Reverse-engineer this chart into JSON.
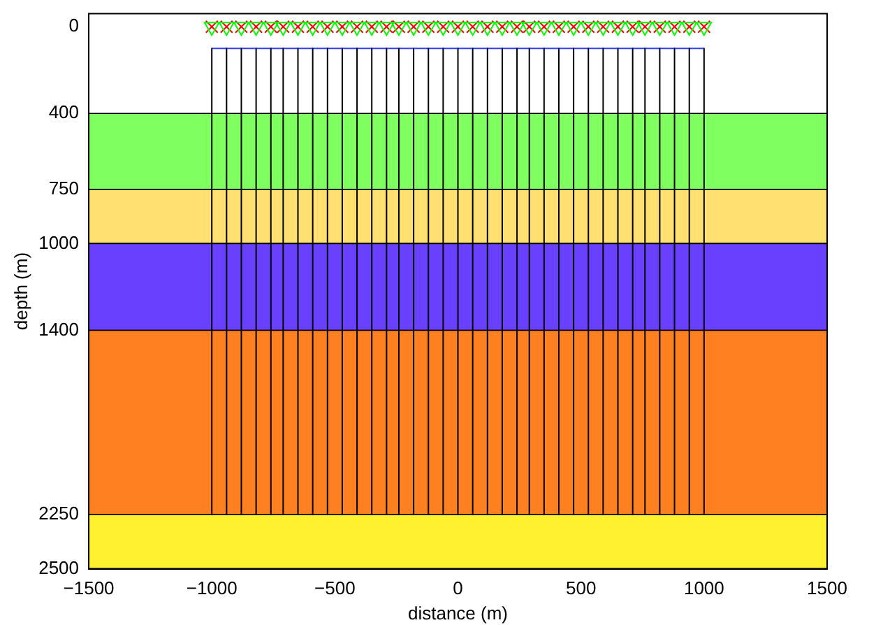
{
  "chart_data": {
    "type": "line",
    "xlabel": "distance (m)",
    "ylabel": "depth (m)",
    "xlim": [
      -1500,
      1500
    ],
    "xticks": [
      {
        "value": -1500,
        "label": "−1500"
      },
      {
        "value": -1000,
        "label": "−1000"
      },
      {
        "value": -500,
        "label": "−500"
      },
      0,
      500,
      1000,
      1500
    ],
    "ylim": [
      2500,
      -60
    ],
    "yticks": [
      0,
      400,
      750,
      1000,
      1400,
      2250,
      2500
    ],
    "grid": false,
    "legend": false,
    "bands": [
      {
        "axis": "y",
        "from": 400,
        "to": 750,
        "color": "#80ff60"
      },
      {
        "axis": "y",
        "from": 750,
        "to": 1000,
        "color": "#ffe070"
      },
      {
        "axis": "y",
        "from": 1000,
        "to": 1400,
        "color": "#6a40ff"
      },
      {
        "axis": "y",
        "from": 1400,
        "to": 2250,
        "color": "#ff8020"
      },
      {
        "axis": "y",
        "from": 2250,
        "to": 2500,
        "color": "#fff030"
      }
    ],
    "series": [
      {
        "color": "#000000",
        "marker": "none",
        "x": [
          -1000,
          -1000
        ],
        "values": [
          100,
          2250
        ]
      },
      {
        "color": "#000000",
        "marker": "none",
        "x": [
          -940,
          -940
        ],
        "values": [
          100,
          2250
        ]
      },
      {
        "color": "#000000",
        "marker": "none",
        "x": [
          -880,
          -880
        ],
        "values": [
          100,
          2250
        ]
      },
      {
        "color": "#000000",
        "marker": "none",
        "x": [
          -820,
          -820
        ],
        "values": [
          100,
          2250
        ]
      },
      {
        "color": "#000000",
        "marker": "none",
        "x": [
          -760,
          -760
        ],
        "values": [
          100,
          2250
        ]
      },
      {
        "color": "#000000",
        "marker": "none",
        "x": [
          -710,
          -710
        ],
        "values": [
          100,
          2250
        ]
      },
      {
        "color": "#000000",
        "marker": "none",
        "x": [
          -650,
          -650
        ],
        "values": [
          100,
          2250
        ]
      },
      {
        "color": "#000000",
        "marker": "none",
        "x": [
          -590,
          -590
        ],
        "values": [
          100,
          2250
        ]
      },
      {
        "color": "#000000",
        "marker": "none",
        "x": [
          -530,
          -530
        ],
        "values": [
          100,
          2250
        ]
      },
      {
        "color": "#000000",
        "marker": "none",
        "x": [
          -470,
          -470
        ],
        "values": [
          100,
          2250
        ]
      },
      {
        "color": "#000000",
        "marker": "none",
        "x": [
          -410,
          -410
        ],
        "values": [
          100,
          2250
        ]
      },
      {
        "color": "#000000",
        "marker": "none",
        "x": [
          -350,
          -350
        ],
        "values": [
          100,
          2250
        ]
      },
      {
        "color": "#000000",
        "marker": "none",
        "x": [
          -290,
          -290
        ],
        "values": [
          100,
          2250
        ]
      },
      {
        "color": "#000000",
        "marker": "none",
        "x": [
          -240,
          -240
        ],
        "values": [
          100,
          2250
        ]
      },
      {
        "color": "#000000",
        "marker": "none",
        "x": [
          -180,
          -180
        ],
        "values": [
          100,
          2250
        ]
      },
      {
        "color": "#000000",
        "marker": "none",
        "x": [
          -120,
          -120
        ],
        "values": [
          100,
          2250
        ]
      },
      {
        "color": "#000000",
        "marker": "none",
        "x": [
          -60,
          -60
        ],
        "values": [
          100,
          2250
        ]
      },
      {
        "color": "#000000",
        "marker": "none",
        "x": [
          0,
          0
        ],
        "values": [
          100,
          2250
        ]
      },
      {
        "color": "#000000",
        "marker": "none",
        "x": [
          60,
          60
        ],
        "values": [
          100,
          2250
        ]
      },
      {
        "color": "#000000",
        "marker": "none",
        "x": [
          120,
          120
        ],
        "values": [
          100,
          2250
        ]
      },
      {
        "color": "#000000",
        "marker": "none",
        "x": [
          180,
          180
        ],
        "values": [
          100,
          2250
        ]
      },
      {
        "color": "#000000",
        "marker": "none",
        "x": [
          240,
          240
        ],
        "values": [
          100,
          2250
        ]
      },
      {
        "color": "#000000",
        "marker": "none",
        "x": [
          290,
          290
        ],
        "values": [
          100,
          2250
        ]
      },
      {
        "color": "#000000",
        "marker": "none",
        "x": [
          350,
          350
        ],
        "values": [
          100,
          2250
        ]
      },
      {
        "color": "#000000",
        "marker": "none",
        "x": [
          410,
          410
        ],
        "values": [
          100,
          2250
        ]
      },
      {
        "color": "#000000",
        "marker": "none",
        "x": [
          470,
          470
        ],
        "values": [
          100,
          2250
        ]
      },
      {
        "color": "#000000",
        "marker": "none",
        "x": [
          530,
          530
        ],
        "values": [
          100,
          2250
        ]
      },
      {
        "color": "#000000",
        "marker": "none",
        "x": [
          590,
          590
        ],
        "values": [
          100,
          2250
        ]
      },
      {
        "color": "#000000",
        "marker": "none",
        "x": [
          650,
          650
        ],
        "values": [
          100,
          2250
        ]
      },
      {
        "color": "#000000",
        "marker": "none",
        "x": [
          710,
          710
        ],
        "values": [
          100,
          2250
        ]
      },
      {
        "color": "#000000",
        "marker": "none",
        "x": [
          760,
          760
        ],
        "values": [
          100,
          2250
        ]
      },
      {
        "color": "#000000",
        "marker": "none",
        "x": [
          820,
          820
        ],
        "values": [
          100,
          2250
        ]
      },
      {
        "color": "#000000",
        "marker": "none",
        "x": [
          880,
          880
        ],
        "values": [
          100,
          2250
        ]
      },
      {
        "color": "#000000",
        "marker": "none",
        "x": [
          940,
          940
        ],
        "values": [
          100,
          2250
        ]
      },
      {
        "color": "#000000",
        "marker": "none",
        "x": [
          1000,
          1000
        ],
        "values": [
          100,
          2250
        ]
      },
      {
        "color": "#3040ff",
        "marker": "none",
        "x": [
          -1000,
          1000
        ],
        "values": [
          100,
          100
        ]
      },
      {
        "type": "scatter",
        "color": "#00ff00",
        "marker": "triangle",
        "x": [
          -1000,
          -940,
          -880,
          -820,
          -760,
          -710,
          -650,
          -590,
          -530,
          -470,
          -410,
          -350,
          -290,
          -240,
          -180,
          -120,
          -60,
          0,
          60,
          120,
          180,
          240,
          290,
          350,
          410,
          470,
          530,
          590,
          650,
          710,
          760,
          820,
          880,
          940,
          1000
        ],
        "values": [
          0,
          0,
          0,
          0,
          0,
          0,
          0,
          0,
          0,
          0,
          0,
          0,
          0,
          0,
          0,
          0,
          0,
          0,
          0,
          0,
          0,
          0,
          0,
          0,
          0,
          0,
          0,
          0,
          0,
          0,
          0,
          0,
          0,
          0,
          0
        ]
      },
      {
        "type": "scatter",
        "color": "#ff0000",
        "marker": "cross",
        "x": [
          -1000,
          -940,
          -880,
          -820,
          -760,
          -710,
          -650,
          -590,
          -530,
          -470,
          -410,
          -350,
          -290,
          -240,
          -180,
          -120,
          -60,
          0,
          60,
          120,
          180,
          240,
          290,
          350,
          410,
          470,
          530,
          590,
          650,
          710,
          760,
          820,
          880,
          940,
          1000
        ],
        "values": [
          0,
          0,
          0,
          0,
          0,
          0,
          0,
          0,
          0,
          0,
          0,
          0,
          0,
          0,
          0,
          0,
          0,
          0,
          0,
          0,
          0,
          0,
          0,
          0,
          0,
          0,
          0,
          0,
          0,
          0,
          0,
          0,
          0,
          0,
          0
        ]
      }
    ]
  }
}
